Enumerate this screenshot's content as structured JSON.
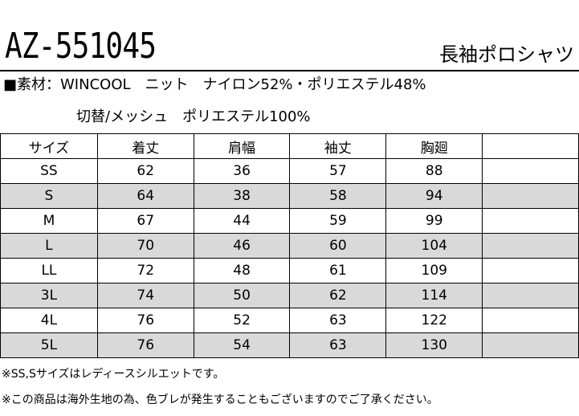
{
  "product": {
    "model": "AZ-551045",
    "name": "長袖ポロシャツ"
  },
  "material": {
    "line1": "■素材：WINCOOL　ニット　ナイロン52%・ポリエステル48%",
    "line2": "切替/メッシュ　ポリエステル100%"
  },
  "table": {
    "headers": [
      "サイズ",
      "着丈",
      "肩幅",
      "袖丈",
      "胸廻",
      ""
    ],
    "rows": [
      [
        "SS",
        "62",
        "36",
        "57",
        "88",
        ""
      ],
      [
        "S",
        "64",
        "38",
        "58",
        "94",
        ""
      ],
      [
        "M",
        "67",
        "44",
        "59",
        "99",
        ""
      ],
      [
        "L",
        "70",
        "46",
        "60",
        "104",
        ""
      ],
      [
        "LL",
        "72",
        "48",
        "61",
        "109",
        ""
      ],
      [
        "3L",
        "74",
        "50",
        "62",
        "114",
        ""
      ],
      [
        "4L",
        "76",
        "52",
        "63",
        "122",
        ""
      ],
      [
        "5L",
        "76",
        "54",
        "63",
        "130",
        ""
      ]
    ],
    "shaded_color": "#d9d9d9"
  },
  "notes": [
    "※SS,Sサイズはレディースシルエットです。",
    "※この商品は海外生地の為、色ブレが発生することもございますのでご了承ください。"
  ]
}
